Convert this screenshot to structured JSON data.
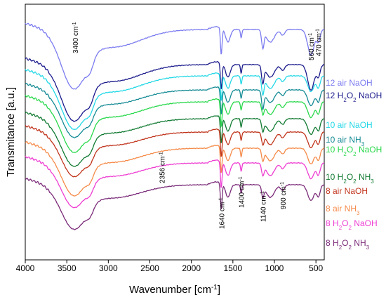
{
  "chart_data": {
    "type": "line",
    "title": "",
    "xlabel": "Wavenumber [cm",
    "xlabel_sup": "-1",
    "xlabel_end": "]",
    "ylabel": "Transmitance [a.u.]",
    "xlim": [
      4000,
      400
    ],
    "x_reversed": true,
    "y_ticks_shown": false,
    "x_ticks": [
      4000,
      3500,
      3000,
      2500,
      2000,
      1500,
      1000,
      500
    ],
    "x_tick_labels": [
      "4000",
      "3500",
      "3000",
      "2500",
      "2000",
      "1500",
      "1000",
      "500"
    ],
    "annotations": [
      {
        "text": "3400 cm",
        "sup": "-1",
        "x": 3400
      },
      {
        "text": "2356 cm",
        "sup": "-1",
        "x": 2356
      },
      {
        "text": "1640 cm",
        "sup": "-1",
        "x": 1640
      },
      {
        "text": "1400 cm",
        "sup": "-1",
        "x": 1400
      },
      {
        "text": "1140 cm",
        "sup": "-1",
        "x": 1140
      },
      {
        "text": "900 cm",
        "sup": "-1",
        "x": 900
      },
      {
        "text": "560 cm",
        "sup": "-1",
        "x": 560
      },
      {
        "text": "470 cm",
        "sup": "-1",
        "x": 470
      }
    ],
    "series": [
      {
        "name": "12 air NaOH",
        "parts": [
          [
            "12 air NaOH",
            ""
          ]
        ],
        "color": "#7b7bf0"
      },
      {
        "name": "12 H2O2 NaOH",
        "parts": [
          [
            "12 H",
            ""
          ],
          [
            "2",
            "sub"
          ],
          [
            "O",
            ""
          ],
          [
            "2",
            "sub"
          ],
          [
            " NaOH",
            ""
          ]
        ],
        "color": "#1a1a8c"
      },
      {
        "name": "10 air NaOH",
        "parts": [
          [
            "10 air NaOH",
            ""
          ]
        ],
        "color": "#22d8e6"
      },
      {
        "name": "10 air NH3",
        "parts": [
          [
            "10 air NH",
            ""
          ],
          [
            "3",
            "sub"
          ]
        ],
        "color": "#138a94"
      },
      {
        "name": "10 H2O2 NaOH",
        "parts": [
          [
            "10 H",
            ""
          ],
          [
            "2",
            "sub"
          ],
          [
            "O",
            ""
          ],
          [
            "2",
            "sub"
          ],
          [
            " NaOH",
            ""
          ]
        ],
        "color": "#27d84a"
      },
      {
        "name": "10 H2O2 NH3",
        "parts": [
          [
            "10 H",
            ""
          ],
          [
            "2",
            "sub"
          ],
          [
            "O",
            ""
          ],
          [
            "2",
            "sub"
          ],
          [
            " NH",
            ""
          ],
          [
            "3",
            "sub"
          ]
        ],
        "color": "#117a32"
      },
      {
        "name": "8 air NaOH",
        "parts": [
          [
            "8 air NaOH",
            ""
          ]
        ],
        "color": "#c0341c"
      },
      {
        "name": "8 air NH3",
        "parts": [
          [
            "8 air NH",
            ""
          ],
          [
            "3",
            "sub"
          ]
        ],
        "color": "#f58a48"
      },
      {
        "name": "8 H2O2 NaOH",
        "parts": [
          [
            "8 H",
            ""
          ],
          [
            "2",
            "sub"
          ],
          [
            "O",
            ""
          ],
          [
            "2",
            "sub"
          ],
          [
            " NaOH",
            ""
          ]
        ],
        "color": "#ee3dd2"
      },
      {
        "name": "8 H2O2 NH3",
        "parts": [
          [
            "8 H",
            ""
          ],
          [
            "2",
            "sub"
          ],
          [
            "O",
            ""
          ],
          [
            "2",
            "sub"
          ],
          [
            " NH",
            ""
          ],
          [
            "3",
            "sub"
          ]
        ],
        "color": "#7a2a78"
      }
    ]
  }
}
